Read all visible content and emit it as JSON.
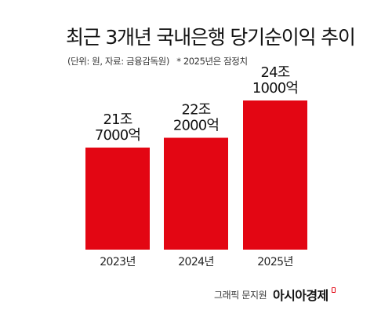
{
  "header": {
    "title": "최근 3개년 국내은행 당기순이익 추이",
    "source": "(단위: 원, 자료: 금융감독원)",
    "note": "* 2025년은 잠정치"
  },
  "chart_data": {
    "type": "bar",
    "categories": [
      "2023년",
      "2024년",
      "2025년"
    ],
    "values": [
      217000,
      222000,
      241000
    ],
    "value_unit": "억원",
    "value_labels": [
      [
        "21조",
        "7000억"
      ],
      [
        "22조",
        "2000억"
      ],
      [
        "24조",
        "1000억"
      ]
    ],
    "bar_color": "#e30613",
    "grid": false,
    "legend": "none"
  },
  "footer": {
    "credit": "그래픽 문지원",
    "brand": "아시아경제"
  }
}
